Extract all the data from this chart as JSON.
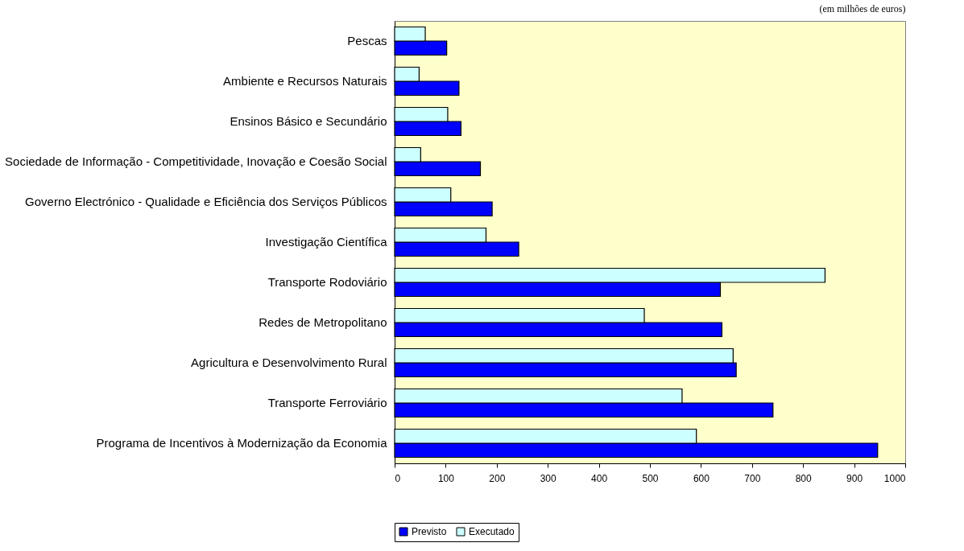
{
  "chart_data": {
    "type": "bar",
    "orientation": "horizontal",
    "annotations": [
      "(em milhões de euros)"
    ],
    "categories": [
      "Pescas",
      "Ambiente e Recursos Naturais",
      "Ensinos Básico e Secundário",
      "Sociedade de Informação - Competitividade, Inovação e Coesão Social",
      "Governo Electrónico - Qualidade e Eficiência dos Serviços Públicos",
      "Investigação Científica",
      "Transporte Rodoviário",
      "Redes de Metropolitano",
      "Agricultura e Desenvolvimento Rural",
      "Transporte Ferroviário",
      "Programa de Incentivos à Modernização da Economia"
    ],
    "series": [
      {
        "name": "Previsto",
        "color": "#0000ff",
        "values": [
          102,
          126,
          130,
          168,
          191,
          243,
          638,
          641,
          669,
          741,
          946
        ]
      },
      {
        "name": "Executado",
        "color": "#ccffff",
        "values": [
          60,
          48,
          104,
          51,
          110,
          179,
          843,
          489,
          663,
          563,
          591
        ]
      }
    ],
    "xlim": [
      0,
      1000
    ],
    "xticks": [
      0,
      100,
      200,
      300,
      400,
      500,
      600,
      700,
      800,
      900,
      {
        "value": 1000,
        "label": "1000"
      }
    ],
    "grid": false,
    "legend": "bottom"
  }
}
